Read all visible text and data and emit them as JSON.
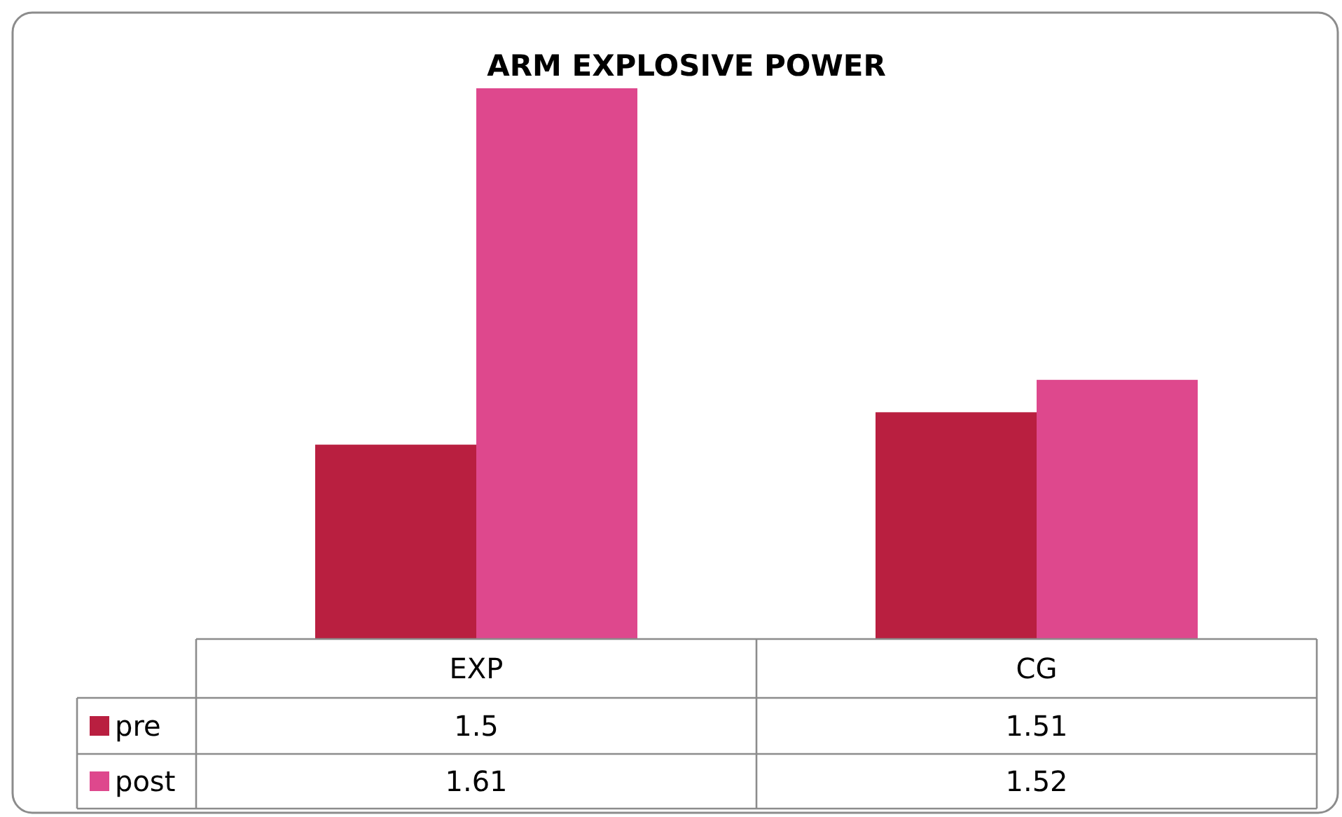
{
  "chart_data": {
    "type": "bar",
    "title": "ARM EXPLOSIVE POWER",
    "categories": [
      "EXP",
      "CG"
    ],
    "series": [
      {
        "name": "pre",
        "color": "#b91f40",
        "values": [
          1.5,
          1.51
        ]
      },
      {
        "name": "post",
        "color": "#de488d",
        "values": [
          1.61,
          1.52
        ]
      }
    ],
    "ylim": [
      1.44,
      1.61
    ],
    "data_labels": true,
    "legend": "bottom",
    "tick_labels": "x"
  }
}
